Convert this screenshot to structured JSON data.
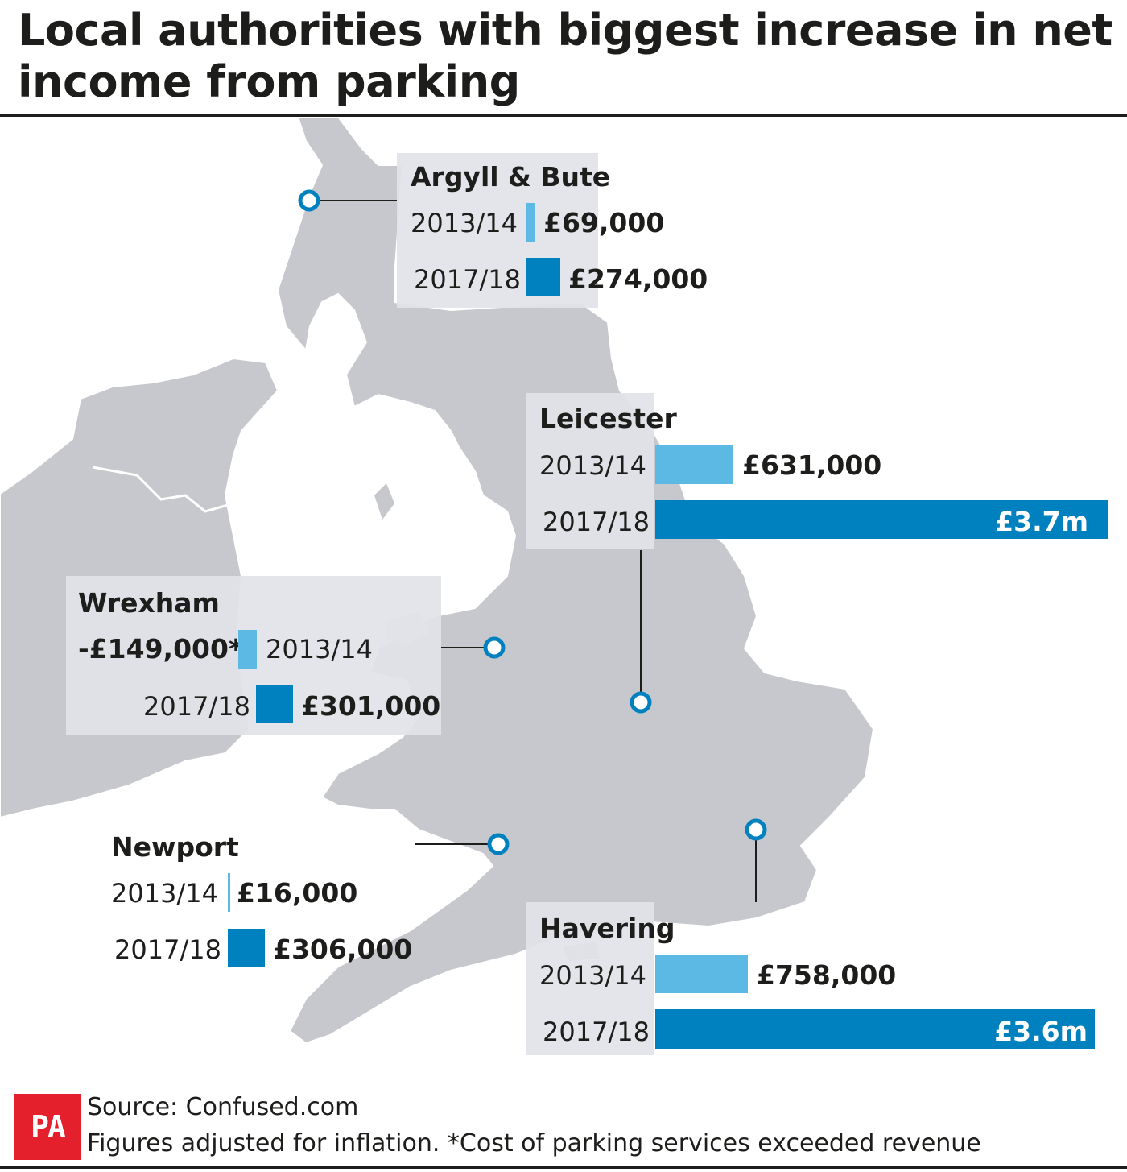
{
  "title": "Local authorities with biggest increase in net income from parking",
  "colors": {
    "land_gb": "#c7c8cd",
    "land_ireland": "#c7c8cd",
    "bar_2013": "#5cb9e3",
    "bar_2017": "#0081bf",
    "marker": "#0081bf",
    "pa_logo": "#e4202d"
  },
  "authorities": [
    {
      "name": "Argyll & Bute",
      "rows": [
        {
          "year": "2013/14",
          "value": 69000,
          "label": "£69,000"
        },
        {
          "year": "2017/18",
          "value": 274000,
          "label": "£274,000"
        }
      ]
    },
    {
      "name": "Leicester",
      "rows": [
        {
          "year": "2013/14",
          "value": 631000,
          "label": "£631,000"
        },
        {
          "year": "2017/18",
          "value": 3700000,
          "label": "£3.7m"
        }
      ]
    },
    {
      "name": "Wrexham",
      "rows": [
        {
          "year": "2013/14",
          "value": -149000,
          "label": "-£149,000*"
        },
        {
          "year": "2017/18",
          "value": 301000,
          "label": "£301,000"
        }
      ]
    },
    {
      "name": "Newport",
      "rows": [
        {
          "year": "2013/14",
          "value": 16000,
          "label": "£16,000"
        },
        {
          "year": "2017/18",
          "value": 306000,
          "label": "£306,000"
        }
      ]
    },
    {
      "name": "Havering",
      "rows": [
        {
          "year": "2013/14",
          "value": 758000,
          "label": "£758,000"
        },
        {
          "year": "2017/18",
          "value": 3600000,
          "label": "£3.6m"
        }
      ]
    }
  ],
  "footer": {
    "logo_text": "PA",
    "source": "Source: Confused.com",
    "note": "Figures adjusted for inflation. *Cost of parking services exceeded revenue"
  }
}
